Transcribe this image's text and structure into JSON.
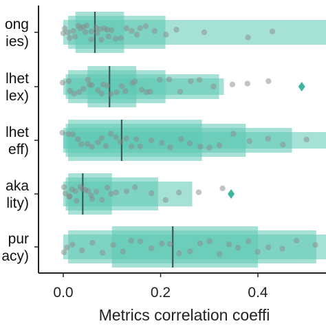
{
  "chart_data": {
    "type": "boxen-strip",
    "xlabel": "Metrics correlation coeffi",
    "xlim": [
      -0.07,
      0.6
    ],
    "xticks": [
      0.0,
      0.2,
      0.4
    ],
    "xtick_labels": [
      "0.0",
      "0.2",
      "0.4"
    ],
    "categories": [
      {
        "line1": "ong",
        "line2": "ies)"
      },
      {
        "line1": "lhet",
        "line2": "lex)"
      },
      {
        "line1": "lhet",
        "line2": "eff)"
      },
      {
        "line1": "aka",
        "line2": "lity)"
      },
      {
        "line1": "pur",
        "line2": "acy)"
      }
    ],
    "series": [
      {
        "median": 0.065,
        "boxes": [
          [
            0.025,
            0.125
          ],
          [
            0.01,
            0.21
          ],
          [
            0.0,
            0.6
          ]
        ],
        "outliers": [],
        "points": [
          0.0,
          0.005,
          0.01,
          0.015,
          0.02,
          0.025,
          0.03,
          0.035,
          0.04,
          0.045,
          0.05,
          0.055,
          0.06,
          0.065,
          0.07,
          0.075,
          0.08,
          0.085,
          0.09,
          0.095,
          0.1,
          0.11,
          0.12,
          0.13,
          0.14,
          0.15,
          0.16,
          0.17,
          0.19,
          0.21,
          0.23,
          0.29,
          0.38,
          0.43
        ]
      },
      {
        "median": 0.095,
        "boxes": [
          [
            0.05,
            0.15
          ],
          [
            0.01,
            0.21
          ],
          [
            0.005,
            0.32
          ],
          [
            0.0,
            0.33
          ]
        ],
        "outliers": [
          0.49
        ],
        "points": [
          0.0,
          0.01,
          0.015,
          0.02,
          0.03,
          0.04,
          0.05,
          0.055,
          0.06,
          0.07,
          0.08,
          0.085,
          0.09,
          0.1,
          0.11,
          0.12,
          0.13,
          0.14,
          0.15,
          0.16,
          0.17,
          0.18,
          0.2,
          0.22,
          0.24,
          0.26,
          0.28,
          0.31,
          0.35,
          0.38,
          0.42
        ]
      },
      {
        "median": 0.12,
        "boxes": [
          [
            0.01,
            0.285
          ],
          [
            0.005,
            0.375
          ],
          [
            0.0,
            0.47
          ],
          [
            0.0,
            0.6
          ]
        ],
        "outliers": [],
        "points": [
          0.0,
          0.01,
          0.02,
          0.03,
          0.04,
          0.05,
          0.06,
          0.07,
          0.08,
          0.09,
          0.1,
          0.11,
          0.12,
          0.13,
          0.14,
          0.15,
          0.16,
          0.18,
          0.2,
          0.22,
          0.24,
          0.26,
          0.28,
          0.3,
          0.32,
          0.35,
          0.38,
          0.42,
          0.45,
          0.5,
          0.55
        ]
      },
      {
        "median": 0.04,
        "boxes": [
          [
            0.01,
            0.1
          ],
          [
            0.005,
            0.195
          ],
          [
            0.0,
            0.265
          ]
        ],
        "outliers": [
          0.345
        ],
        "points": [
          0.0,
          0.005,
          0.01,
          0.015,
          0.02,
          0.025,
          0.03,
          0.035,
          0.04,
          0.045,
          0.05,
          0.055,
          0.06,
          0.07,
          0.08,
          0.09,
          0.1,
          0.11,
          0.13,
          0.15,
          0.18,
          0.21,
          0.24,
          0.28,
          0.33
        ]
      },
      {
        "median": 0.225,
        "boxes": [
          [
            0.1,
            0.4
          ],
          [
            0.01,
            0.52
          ],
          [
            0.0,
            0.6
          ]
        ],
        "outliers": [],
        "points": [
          0.0,
          0.01,
          0.02,
          0.04,
          0.06,
          0.08,
          0.1,
          0.12,
          0.14,
          0.16,
          0.18,
          0.2,
          0.22,
          0.24,
          0.26,
          0.28,
          0.3,
          0.32,
          0.34,
          0.36,
          0.38,
          0.4,
          0.42,
          0.45,
          0.48,
          0.52,
          0.56,
          0.59
        ]
      }
    ],
    "grid": false,
    "colors": {
      "box_fill": "#5cc9b5",
      "median_line": "#3d5a54",
      "points": "#8a8a8a",
      "outlier": "#3fb59d",
      "axis": "#222222"
    }
  }
}
